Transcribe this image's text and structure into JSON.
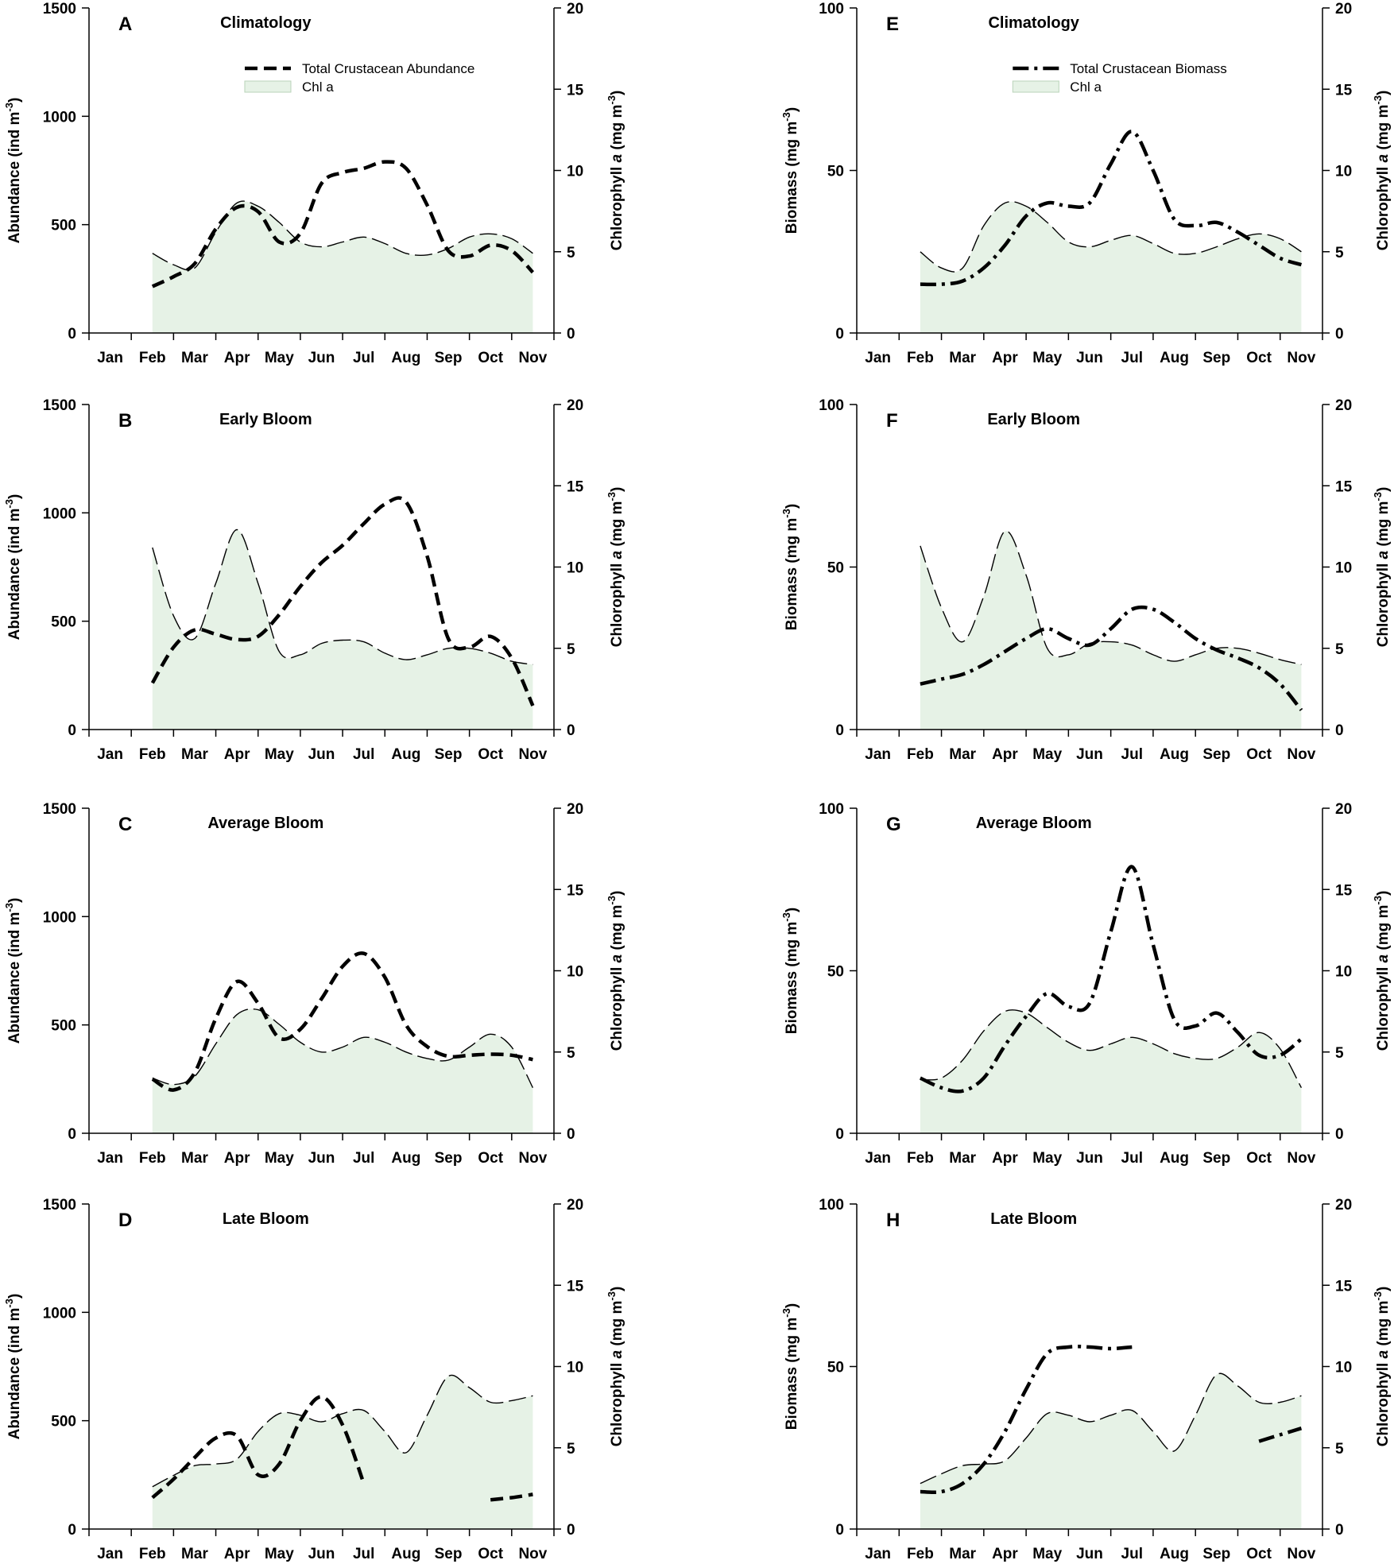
{
  "chart_data": [
    {
      "letter": "A",
      "type": "line",
      "title": "Climatology",
      "x_categories": [
        "Jan",
        "Feb",
        "Mar",
        "Apr",
        "May",
        "Jun",
        "Jul",
        "Aug",
        "Sep",
        "Oct",
        "Nov"
      ],
      "ylabel_main": "Abundance (ind m",
      "ylabel_main_sup": "-3",
      "ylabel_main_close": ")",
      "ylim_main": [
        0,
        1500
      ],
      "yticks_main": [
        "0",
        "500",
        "1000",
        "1500"
      ],
      "ylabel_chl": "Chlorophyll ",
      "ylabel_chl_italic": "a",
      "ylabel_chl_unit": " (mg m",
      "ylabel_chl_sup": "-3",
      "ylabel_chl_close": ")",
      "ylim_chl": [
        0,
        20
      ],
      "yticks_chl": [
        "0",
        "5",
        "10",
        "15",
        "20"
      ],
      "legend": {
        "main": "Total Crustacean Abundance",
        "chl": "Chl a"
      },
      "series": [
        {
          "name": "Total Crustacean Abundance",
          "style": "dash",
          "x": [
            2,
            2.5,
            3,
            3.5,
            4,
            4.5,
            5,
            5.5,
            6,
            6.5,
            7,
            7.5,
            8,
            8.5,
            9,
            9.5,
            10,
            10.5,
            11
          ],
          "y": [
            215,
            260,
            320,
            480,
            580,
            560,
            420,
            460,
            690,
            740,
            760,
            790,
            760,
            590,
            380,
            355,
            405,
            380,
            280
          ]
        },
        {
          "name": "Chl a",
          "style": "chl",
          "x": [
            2,
            2.5,
            3,
            3.5,
            4,
            4.5,
            5,
            5.5,
            6,
            6.5,
            7,
            7.5,
            8,
            8.5,
            9,
            9.5,
            10,
            10.5,
            11
          ],
          "y": [
            4.9,
            4.2,
            4,
            6.2,
            8,
            7.8,
            6.8,
            5.6,
            5.3,
            5.6,
            5.9,
            5.5,
            4.9,
            4.8,
            5.2,
            5.9,
            6.1,
            5.8,
            4.9
          ]
        }
      ]
    },
    {
      "letter": "B",
      "type": "line",
      "title": "Early Bloom",
      "x_categories": [
        "Jan",
        "Feb",
        "Mar",
        "Apr",
        "May",
        "Jun",
        "Jul",
        "Aug",
        "Sep",
        "Oct",
        "Nov"
      ],
      "ylabel_main": "Abundance (ind m",
      "ylabel_main_sup": "-3",
      "ylabel_main_close": ")",
      "ylim_main": [
        0,
        1500
      ],
      "yticks_main": [
        "0",
        "500",
        "1000",
        "1500"
      ],
      "ylabel_chl": "Chlorophyll ",
      "ylabel_chl_italic": "a",
      "ylabel_chl_unit": " (mg m",
      "ylabel_chl_sup": "-3",
      "ylabel_chl_close": ")",
      "ylim_chl": [
        0,
        20
      ],
      "yticks_chl": [
        "0",
        "5",
        "10",
        "15",
        "20"
      ],
      "series": [
        {
          "name": "Total Crustacean Abundance",
          "style": "dash",
          "x": [
            2,
            2.5,
            3,
            3.5,
            4,
            4.5,
            5,
            5.5,
            6,
            6.5,
            7,
            7.5,
            8,
            8.5,
            9,
            9.5,
            10,
            10.5,
            11
          ],
          "y": [
            215,
            380,
            460,
            440,
            415,
            430,
            530,
            660,
            770,
            850,
            950,
            1040,
            1050,
            800,
            420,
            380,
            430,
            330,
            110
          ]
        },
        {
          "name": "Chl a",
          "style": "chl",
          "x": [
            2,
            2.5,
            3,
            3.5,
            4,
            4.5,
            5,
            5.5,
            6,
            6.5,
            7,
            7.5,
            8,
            8.5,
            9,
            9.5,
            10,
            10.5,
            11
          ],
          "y": [
            11.2,
            7,
            5.6,
            9,
            12.3,
            9,
            4.8,
            4.6,
            5.3,
            5.5,
            5.4,
            4.7,
            4.3,
            4.6,
            5,
            5,
            4.7,
            4.2,
            4
          ]
        }
      ]
    },
    {
      "letter": "C",
      "type": "line",
      "title": "Average Bloom",
      "x_categories": [
        "Jan",
        "Feb",
        "Mar",
        "Apr",
        "May",
        "Jun",
        "Jul",
        "Aug",
        "Sep",
        "Oct",
        "Nov"
      ],
      "ylabel_main": "Abundance (ind m",
      "ylabel_main_sup": "-3",
      "ylabel_main_close": ")",
      "ylim_main": [
        0,
        1500
      ],
      "yticks_main": [
        "0",
        "500",
        "1000",
        "1500"
      ],
      "ylabel_chl": "Chlorophyll ",
      "ylabel_chl_italic": "a",
      "ylabel_chl_unit": " (mg m",
      "ylabel_chl_sup": "-3",
      "ylabel_chl_close": ")",
      "ylim_chl": [
        0,
        20
      ],
      "yticks_chl": [
        "0",
        "5",
        "10",
        "15",
        "20"
      ],
      "series": [
        {
          "name": "Total Crustacean Abundance",
          "style": "dash",
          "x": [
            2,
            2.5,
            3,
            3.5,
            4,
            4.5,
            5,
            5.5,
            6,
            6.5,
            7,
            7.5,
            8,
            8.5,
            9,
            9.5,
            10,
            10.5,
            11
          ],
          "y": [
            250,
            200,
            280,
            530,
            700,
            600,
            440,
            480,
            620,
            770,
            830,
            720,
            500,
            400,
            355,
            360,
            365,
            360,
            340
          ]
        },
        {
          "name": "Chl a",
          "style": "chl",
          "x": [
            2,
            2.5,
            3,
            3.5,
            4,
            4.5,
            5,
            5.5,
            6,
            6.5,
            7,
            7.5,
            8,
            8.5,
            9,
            9.5,
            10,
            10.5,
            11
          ],
          "y": [
            3.4,
            3,
            3.5,
            5.5,
            7.3,
            7.6,
            6.7,
            5.6,
            5,
            5.3,
            5.9,
            5.6,
            5,
            4.6,
            4.5,
            5.3,
            6.1,
            5.3,
            2.8
          ]
        }
      ]
    },
    {
      "letter": "D",
      "type": "line",
      "title": "Late Bloom",
      "x_categories": [
        "Jan",
        "Feb",
        "Mar",
        "Apr",
        "May",
        "Jun",
        "Jul",
        "Aug",
        "Sep",
        "Oct",
        "Nov"
      ],
      "ylabel_main": "Abundance (ind m",
      "ylabel_main_sup": "-3",
      "ylabel_main_close": ")",
      "ylim_main": [
        0,
        1500
      ],
      "yticks_main": [
        "0",
        "500",
        "1000",
        "1500"
      ],
      "ylabel_chl": "Chlorophyll ",
      "ylabel_chl_italic": "a",
      "ylabel_chl_unit": " (mg m",
      "ylabel_chl_sup": "-3",
      "ylabel_chl_close": ")",
      "ylim_chl": [
        0,
        20
      ],
      "yticks_chl": [
        "0",
        "5",
        "10",
        "15",
        "20"
      ],
      "series": [
        {
          "name": "Total Crustacean Abundance",
          "style": "dash",
          "x": [
            2,
            2.5,
            3,
            3.5,
            4,
            4.5,
            5,
            5.5,
            6,
            6.5,
            7
          ],
          "y": [
            145,
            230,
            330,
            420,
            430,
            250,
            300,
            500,
            610,
            480,
            210
          ]
        },
        {
          "name": "Total Crustacean Abundance",
          "style": "dash",
          "x": [
            10,
            10.5,
            11
          ],
          "y": [
            135,
            145,
            160
          ]
        },
        {
          "name": "Chl a",
          "style": "chl",
          "x": [
            2,
            2.5,
            3,
            3.5,
            4,
            4.5,
            5,
            5.5,
            6,
            6.5,
            7,
            7.5,
            8,
            8.5,
            9,
            9.5,
            10,
            10.5,
            11
          ],
          "y": [
            2.6,
            3.3,
            3.9,
            4,
            4.3,
            6,
            7.1,
            7,
            6.6,
            7.1,
            7.3,
            6,
            4.7,
            7,
            9.4,
            8.7,
            7.8,
            7.9,
            8.2
          ]
        }
      ]
    },
    {
      "letter": "E",
      "type": "line",
      "title": "Climatology",
      "x_categories": [
        "Jan",
        "Feb",
        "Mar",
        "Apr",
        "May",
        "Jun",
        "Jul",
        "Aug",
        "Sep",
        "Oct",
        "Nov"
      ],
      "ylabel_main": "Biomass (mg m",
      "ylabel_main_sup": "-3",
      "ylabel_main_close": ")",
      "ylim_main": [
        0,
        100
      ],
      "yticks_main": [
        "0",
        "50",
        "100"
      ],
      "ylabel_chl": "Chlorophyll ",
      "ylabel_chl_italic": "a",
      "ylabel_chl_unit": " (mg m",
      "ylabel_chl_sup": "-3",
      "ylabel_chl_close": ")",
      "ylim_chl": [
        0,
        20
      ],
      "yticks_chl": [
        "0",
        "5",
        "10",
        "15",
        "20"
      ],
      "legend": {
        "main": "Total Crustacean Biomass",
        "chl": "Chl a"
      },
      "series": [
        {
          "name": "Total Crustacean Biomass",
          "style": "dashdot",
          "x": [
            2,
            2.5,
            3,
            3.5,
            4,
            4.5,
            5,
            5.5,
            6,
            6.5,
            7,
            7.5,
            8,
            8.5,
            9,
            9.5,
            10,
            10.5,
            11
          ],
          "y": [
            15,
            15,
            16,
            20,
            27,
            36,
            40,
            39,
            40,
            52,
            62,
            50,
            35,
            33,
            34,
            31,
            27,
            23,
            21
          ]
        },
        {
          "name": "Chl a",
          "style": "chl",
          "x": [
            2,
            2.5,
            3,
            3.5,
            4,
            4.5,
            5,
            5.5,
            6,
            6.5,
            7,
            7.5,
            8,
            8.5,
            9,
            9.5,
            10,
            10.5,
            11
          ],
          "y": [
            5,
            4,
            4,
            6.6,
            8,
            7.8,
            6.8,
            5.6,
            5.3,
            5.7,
            6,
            5.5,
            4.9,
            4.9,
            5.3,
            5.8,
            6.1,
            5.8,
            5
          ]
        }
      ]
    },
    {
      "letter": "F",
      "type": "line",
      "title": "Early Bloom",
      "x_categories": [
        "Jan",
        "Feb",
        "Mar",
        "Apr",
        "May",
        "Jun",
        "Jul",
        "Aug",
        "Sep",
        "Oct",
        "Nov"
      ],
      "ylabel_main": "Biomass (mg m",
      "ylabel_main_sup": "-3",
      "ylabel_main_close": ")",
      "ylim_main": [
        0,
        100
      ],
      "yticks_main": [
        "0",
        "50",
        "100"
      ],
      "ylabel_chl": "Chlorophyll ",
      "ylabel_chl_italic": "a",
      "ylabel_chl_unit": " (mg m",
      "ylabel_chl_sup": "-3",
      "ylabel_chl_close": ")",
      "ylim_chl": [
        0,
        20
      ],
      "yticks_chl": [
        "0",
        "5",
        "10",
        "15",
        "20"
      ],
      "series": [
        {
          "name": "Total Crustacean Biomass",
          "style": "dashdot",
          "x": [
            2,
            2.5,
            3,
            3.5,
            4,
            4.5,
            5,
            5.5,
            6,
            6.5,
            7,
            7.5,
            8,
            8.5,
            9,
            9.5,
            10,
            10.5,
            11
          ],
          "y": [
            14,
            15.5,
            17,
            20,
            24,
            28,
            31,
            28,
            26,
            31,
            37,
            37,
            33,
            28,
            24.5,
            22,
            19,
            14,
            6
          ]
        },
        {
          "name": "Chl a",
          "style": "chl",
          "x": [
            2,
            2.5,
            3,
            3.5,
            4,
            4.5,
            5,
            5.5,
            6,
            6.5,
            7,
            7.5,
            8,
            8.5,
            9,
            9.5,
            10,
            10.5,
            11
          ],
          "y": [
            11.3,
            7.5,
            5.4,
            8.2,
            12.2,
            9.5,
            5,
            4.6,
            5.3,
            5.4,
            5.2,
            4.6,
            4.2,
            4.6,
            5,
            5,
            4.7,
            4.3,
            4
          ]
        }
      ]
    },
    {
      "letter": "G",
      "type": "line",
      "title": "Average Bloom",
      "x_categories": [
        "Jan",
        "Feb",
        "Mar",
        "Apr",
        "May",
        "Jun",
        "Jul",
        "Aug",
        "Sep",
        "Oct",
        "Nov"
      ],
      "ylabel_main": "Biomass (mg m",
      "ylabel_main_sup": "-3",
      "ylabel_main_close": ")",
      "ylim_main": [
        0,
        100
      ],
      "yticks_main": [
        "0",
        "50",
        "100"
      ],
      "ylabel_chl": "Chlorophyll ",
      "ylabel_chl_italic": "a",
      "ylabel_chl_unit": " (mg m",
      "ylabel_chl_sup": "-3",
      "ylabel_chl_close": ")",
      "ylim_chl": [
        0,
        20
      ],
      "yticks_chl": [
        "0",
        "5",
        "10",
        "15",
        "20"
      ],
      "series": [
        {
          "name": "Total Crustacean Biomass",
          "style": "dashdot",
          "x": [
            2,
            2.5,
            3,
            3.5,
            4,
            4.5,
            5,
            5.5,
            6,
            6.5,
            7,
            7.5,
            8,
            8.5,
            9,
            9.5,
            10,
            10.5,
            11
          ],
          "y": [
            17,
            14,
            13,
            17,
            27,
            36,
            43,
            39,
            40,
            62,
            82,
            58,
            35,
            33,
            37,
            31,
            24,
            24,
            29
          ]
        },
        {
          "name": "Chl a",
          "style": "chl",
          "x": [
            2,
            2.5,
            3,
            3.5,
            4,
            4.5,
            5,
            5.5,
            6,
            6.5,
            7,
            7.5,
            8,
            8.5,
            9,
            9.5,
            10,
            10.5,
            11
          ],
          "y": [
            3.3,
            3.4,
            4.5,
            6.3,
            7.5,
            7.4,
            6.5,
            5.6,
            5.1,
            5.5,
            5.9,
            5.5,
            4.9,
            4.6,
            4.6,
            5.3,
            6.2,
            5.2,
            2.8
          ]
        }
      ]
    },
    {
      "letter": "H",
      "type": "line",
      "title": "Late Bloom",
      "x_categories": [
        "Jan",
        "Feb",
        "Mar",
        "Apr",
        "May",
        "Jun",
        "Jul",
        "Aug",
        "Sep",
        "Oct",
        "Nov"
      ],
      "ylabel_main": "Biomass (mg m",
      "ylabel_main_sup": "-3",
      "ylabel_main_close": ")",
      "ylim_main": [
        0,
        100
      ],
      "yticks_main": [
        "0",
        "50",
        "100"
      ],
      "ylabel_chl": "Chlorophyll ",
      "ylabel_chl_italic": "a",
      "ylabel_chl_unit": " (mg m",
      "ylabel_chl_sup": "-3",
      "ylabel_chl_close": ")",
      "ylim_chl": [
        0,
        20
      ],
      "yticks_chl": [
        "0",
        "5",
        "10",
        "15",
        "20"
      ],
      "series": [
        {
          "name": "Total Crustacean Biomass",
          "style": "dashdot",
          "x": [
            2,
            2.5,
            3,
            3.5,
            4,
            4.5,
            5,
            5.5,
            6,
            6.5,
            7
          ],
          "y": [
            11.5,
            11.5,
            14,
            20,
            30,
            43,
            54,
            56,
            56,
            55.5,
            56
          ]
        },
        {
          "name": "Total Crustacean Biomass",
          "style": "dashdot",
          "x": [
            10,
            10.5,
            11
          ],
          "y": [
            27,
            29,
            31
          ]
        },
        {
          "name": "Chl a",
          "style": "chl",
          "x": [
            2,
            2.5,
            3,
            3.5,
            4,
            4.5,
            5,
            5.5,
            6,
            6.5,
            7,
            7.5,
            8,
            8.5,
            9,
            9.5,
            10,
            10.5,
            11
          ],
          "y": [
            2.8,
            3.4,
            3.9,
            4,
            4.2,
            5.6,
            7.1,
            7,
            6.6,
            7,
            7.3,
            6,
            4.8,
            7,
            9.5,
            8.8,
            7.8,
            7.8,
            8.2
          ]
        }
      ]
    }
  ],
  "colors": {
    "fill": "#e6f2e6",
    "ink": "#000000"
  }
}
